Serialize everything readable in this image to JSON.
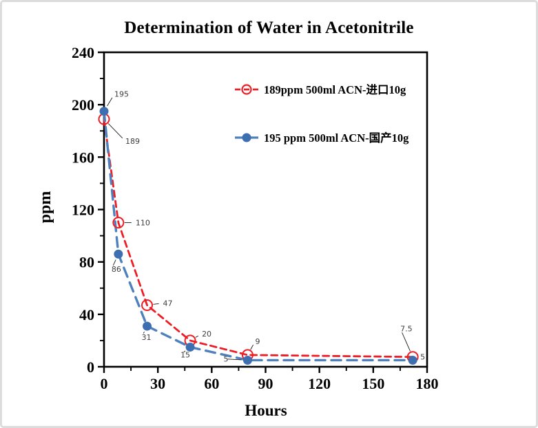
{
  "frame": {
    "background": "#ffffff",
    "border_color": "#dcdcdc"
  },
  "chart_data": {
    "type": "line",
    "title": "Determination of Water in Acetonitrile",
    "xlabel": "Hours",
    "ylabel": "ppm",
    "xlim": [
      0,
      180
    ],
    "ylim": [
      0,
      240
    ],
    "x_major_ticks": [
      0,
      30,
      60,
      90,
      120,
      150,
      180
    ],
    "x_minor_step": 15,
    "y_major_ticks": [
      0,
      40,
      80,
      120,
      160,
      200,
      240
    ],
    "y_minor_step": 20,
    "grid": false,
    "axis_color": "#000000",
    "data_label_color": "#3d3d3d",
    "legend_position": "inside-top-right",
    "series": [
      {
        "name": "189ppm  500ml ACN-进口10g",
        "color": "#ee1c25",
        "marker": "open-circle",
        "marker_color": "#ee1c25",
        "line_style": "dashed",
        "line_dash": [
          9,
          6
        ],
        "line_width": 2.8,
        "x": [
          0,
          8,
          24,
          48,
          80,
          172
        ],
        "y": [
          189,
          110,
          47,
          20,
          9,
          7.5
        ],
        "point_labels": [
          {
            "text": "189",
            "dx": 31,
            "dy": 36
          },
          {
            "text": "110",
            "dx": 25,
            "dy": 4
          },
          {
            "text": "47",
            "dx": 23,
            "dy": 1
          },
          {
            "text": "20",
            "dx": 17,
            "dy": -6
          },
          {
            "text": "9",
            "dx": 11,
            "dy": -16
          },
          {
            "text": "7.5",
            "dx": -18,
            "dy": -37
          }
        ]
      },
      {
        "name": "195 ppm 500ml ACN-国产10g",
        "color": "#4e80bd",
        "marker": "filled-circle",
        "marker_color": "#3d6eb0",
        "line_style": "dashed",
        "line_dash": [
          14,
          9
        ],
        "line_width": 3.4,
        "x": [
          0,
          8,
          24,
          48,
          80,
          172
        ],
        "y": [
          195,
          86,
          31,
          15,
          5,
          5
        ],
        "point_labels": [
          {
            "text": "195",
            "dx": 15,
            "dy": -21
          },
          {
            "text": "86",
            "dx": -10,
            "dy": 26
          },
          {
            "text": "31",
            "dx": -8,
            "dy": 20
          },
          {
            "text": "15",
            "dx": -14,
            "dy": 15
          },
          {
            "text": "5",
            "dx": -35,
            "dy": 2
          },
          {
            "text": "5",
            "dx": 11,
            "dy": -1
          }
        ]
      }
    ]
  }
}
